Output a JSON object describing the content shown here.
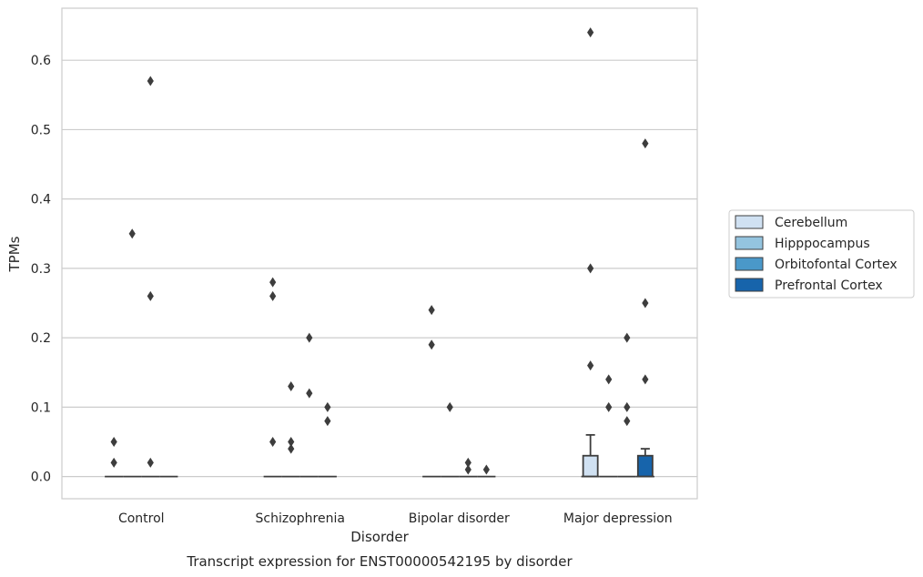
{
  "chart_data": {
    "type": "box",
    "title": "",
    "caption": "Transcript expression for ENST00000542195 by disorder",
    "xlabel": "Disorder",
    "ylabel": "TPMs",
    "ylim": [
      -0.032,
      0.675
    ],
    "yticks": [
      0.0,
      0.1,
      0.2,
      0.3,
      0.4,
      0.5,
      0.6
    ],
    "ytick_labels": [
      "0.0",
      "0.1",
      "0.2",
      "0.3",
      "0.4",
      "0.5",
      "0.6"
    ],
    "grid": "horizontal",
    "legend_position": "right",
    "categories": [
      "Control",
      "Schizophrenia",
      "Bipolar disorder",
      "Major depression"
    ],
    "series": [
      {
        "name": "Cerebellum",
        "color": "#d0e1f2",
        "boxes": [
          {
            "q1": 0,
            "median": 0,
            "q3": 0,
            "whisker_low": 0,
            "whisker_high": 0,
            "outliers": [
              0.05,
              0.02
            ]
          },
          {
            "q1": 0,
            "median": 0,
            "q3": 0,
            "whisker_low": 0,
            "whisker_high": 0,
            "outliers": [
              0.28,
              0.26,
              0.05
            ]
          },
          {
            "q1": 0,
            "median": 0,
            "q3": 0,
            "whisker_low": 0,
            "whisker_high": 0,
            "outliers": [
              0.24,
              0.19
            ]
          },
          {
            "q1": 0,
            "median": 0,
            "q3": 0.03,
            "whisker_low": 0,
            "whisker_high": 0.06,
            "outliers": [
              0.64,
              0.3,
              0.16
            ]
          }
        ]
      },
      {
        "name": "Hipppocampus",
        "color": "#94c4df",
        "boxes": [
          {
            "q1": 0,
            "median": 0,
            "q3": 0,
            "whisker_low": 0,
            "whisker_high": 0,
            "outliers": [
              0.35
            ]
          },
          {
            "q1": 0,
            "median": 0,
            "q3": 0,
            "whisker_low": 0,
            "whisker_high": 0,
            "outliers": [
              0.13,
              0.05,
              0.04
            ]
          },
          {
            "q1": 0,
            "median": 0,
            "q3": 0,
            "whisker_low": 0,
            "whisker_high": 0,
            "outliers": [
              0.1
            ]
          },
          {
            "q1": 0,
            "median": 0,
            "q3": 0,
            "whisker_low": 0,
            "whisker_high": 0,
            "outliers": [
              0.14,
              0.1
            ]
          }
        ]
      },
      {
        "name": "Orbitofontal Cortex",
        "color": "#4a98c9",
        "boxes": [
          {
            "q1": 0,
            "median": 0,
            "q3": 0,
            "whisker_low": 0,
            "whisker_high": 0,
            "outliers": [
              0.57,
              0.26,
              0.02
            ]
          },
          {
            "q1": 0,
            "median": 0,
            "q3": 0,
            "whisker_low": 0,
            "whisker_high": 0,
            "outliers": [
              0.2,
              0.12
            ]
          },
          {
            "q1": 0,
            "median": 0,
            "q3": 0,
            "whisker_low": 0,
            "whisker_high": 0,
            "outliers": [
              0.02,
              0.01
            ]
          },
          {
            "q1": 0,
            "median": 0,
            "q3": 0,
            "whisker_low": 0,
            "whisker_high": 0,
            "outliers": [
              0.2,
              0.1,
              0.08
            ]
          }
        ]
      },
      {
        "name": "Prefrontal Cortex",
        "color": "#1764ab",
        "boxes": [
          {
            "q1": 0,
            "median": 0,
            "q3": 0,
            "whisker_low": 0,
            "whisker_high": 0,
            "outliers": []
          },
          {
            "q1": 0,
            "median": 0,
            "q3": 0,
            "whisker_low": 0,
            "whisker_high": 0,
            "outliers": [
              0.1,
              0.08
            ]
          },
          {
            "q1": 0,
            "median": 0,
            "q3": 0,
            "whisker_low": 0,
            "whisker_high": 0,
            "outliers": [
              0.01
            ]
          },
          {
            "q1": 0,
            "median": 0,
            "q3": 0.03,
            "whisker_low": 0,
            "whisker_high": 0.04,
            "outliers": [
              0.48,
              0.25,
              0.14
            ]
          }
        ]
      }
    ]
  }
}
